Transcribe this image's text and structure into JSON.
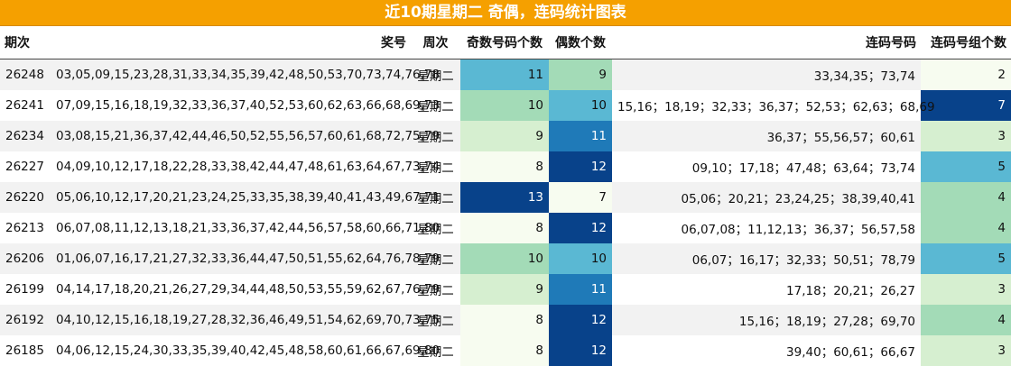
{
  "title": "近10期星期二 奇偶，连码统计图表",
  "headers": {
    "period": "期次",
    "numbers": "奖号",
    "weekday": "周次",
    "odd": "奇数号码个数",
    "even": "偶数个数",
    "consec": "连码号码",
    "groups": "连码号组个数"
  },
  "colors": {
    "title_bg": "#f5a000",
    "scale": [
      "#f7fcf0",
      "#d6efd0",
      "#a3dbb7",
      "#5ab8d3",
      "#1f7ab8",
      "#08428a"
    ]
  },
  "chart_data": {
    "type": "table",
    "columns": [
      "期次",
      "奖号",
      "周次",
      "奇数号码个数",
      "偶数个数",
      "连码号码",
      "连码号组个数"
    ],
    "rows": [
      {
        "period": "26248",
        "numbers": "03,05,09,15,23,28,31,33,34,35,39,42,48,50,53,70,73,74,76,78",
        "weekday": "星期二",
        "odd": 11,
        "even": 9,
        "consec": "33,34,35；73,74",
        "groups": 2
      },
      {
        "period": "26241",
        "numbers": "07,09,15,16,18,19,32,33,36,37,40,52,53,60,62,63,66,68,69,73",
        "weekday": "星期二",
        "odd": 10,
        "even": 10,
        "consec": "15,16；18,19；32,33；36,37；52,53；62,63；68,69",
        "groups": 7
      },
      {
        "period": "26234",
        "numbers": "03,08,15,21,36,37,42,44,46,50,52,55,56,57,60,61,68,72,75,79",
        "weekday": "星期二",
        "odd": 9,
        "even": 11,
        "consec": "36,37；55,56,57；60,61",
        "groups": 3
      },
      {
        "period": "26227",
        "numbers": "04,09,10,12,17,18,22,28,33,38,42,44,47,48,61,63,64,67,73,74",
        "weekday": "星期二",
        "odd": 8,
        "even": 12,
        "consec": "09,10；17,18；47,48；63,64；73,74",
        "groups": 5
      },
      {
        "period": "26220",
        "numbers": "05,06,10,12,17,20,21,23,24,25,33,35,38,39,40,41,43,49,67,71",
        "weekday": "星期二",
        "odd": 13,
        "even": 7,
        "consec": "05,06；20,21；23,24,25；38,39,40,41",
        "groups": 4
      },
      {
        "period": "26213",
        "numbers": "06,07,08,11,12,13,18,21,33,36,37,42,44,56,57,58,60,66,71,80",
        "weekday": "星期二",
        "odd": 8,
        "even": 12,
        "consec": "06,07,08；11,12,13；36,37；56,57,58",
        "groups": 4
      },
      {
        "period": "26206",
        "numbers": "01,06,07,16,17,21,27,32,33,36,44,47,50,51,55,62,64,76,78,79",
        "weekday": "星期二",
        "odd": 10,
        "even": 10,
        "consec": "06,07；16,17；32,33；50,51；78,79",
        "groups": 5
      },
      {
        "period": "26199",
        "numbers": "04,14,17,18,20,21,26,27,29,34,44,48,50,53,55,59,62,67,76,79",
        "weekday": "星期二",
        "odd": 9,
        "even": 11,
        "consec": "17,18；20,21；26,27",
        "groups": 3
      },
      {
        "period": "26192",
        "numbers": "04,10,12,15,16,18,19,27,28,32,36,46,49,51,54,62,69,70,73,75",
        "weekday": "星期二",
        "odd": 8,
        "even": 12,
        "consec": "15,16；18,19；27,28；69,70",
        "groups": 4
      },
      {
        "period": "26185",
        "numbers": "04,06,12,15,24,30,33,35,39,40,42,45,48,58,60,61,66,67,69,80",
        "weekday": "星期二",
        "odd": 8,
        "even": 12,
        "consec": "39,40；60,61；66,67",
        "groups": 3
      }
    ]
  }
}
